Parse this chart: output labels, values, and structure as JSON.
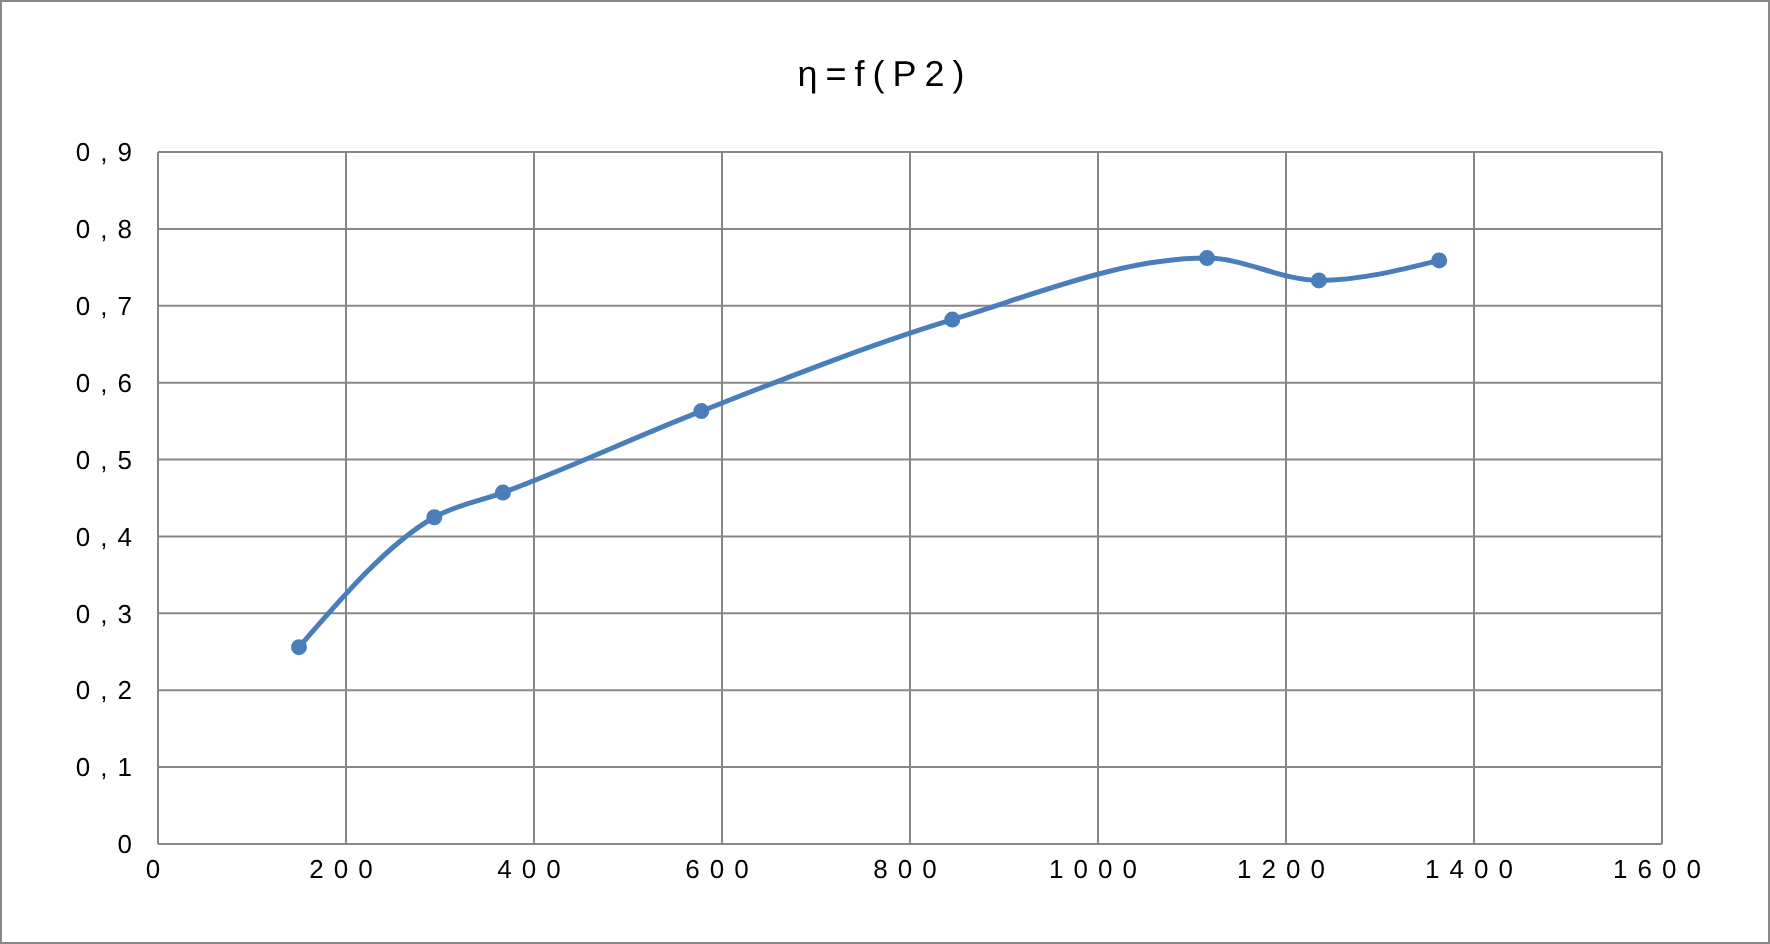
{
  "chart_data": {
    "type": "line",
    "title": "η=f(P2)",
    "x": [
      150,
      294,
      367,
      578,
      845,
      1116,
      1235,
      1363
    ],
    "series": [
      {
        "color": "#4a7ebb",
        "values": [
          0.256,
          0.425,
          0.457,
          0.563,
          0.682,
          0.762,
          0.733,
          0.759
        ]
      }
    ],
    "xlim": [
      0,
      1600
    ],
    "xticks": [
      0,
      200,
      400,
      600,
      800,
      1000,
      1200,
      1400,
      1600
    ],
    "ylim": [
      0,
      0.9
    ],
    "yticks": [
      0,
      {
        "value": 0.1,
        "label": "0,1"
      },
      {
        "value": 0.2,
        "label": "0,2"
      },
      {
        "value": 0.3,
        "label": "0,3"
      },
      {
        "value": 0.4,
        "label": "0,4"
      },
      {
        "value": 0.5,
        "label": "0,5"
      },
      {
        "value": 0.6,
        "label": "0,6"
      },
      {
        "value": 0.7,
        "label": "0,7"
      },
      {
        "value": 0.8,
        "label": "0,8"
      },
      {
        "value": 0.9,
        "label": "0,9"
      }
    ],
    "grid": true,
    "marker": "circle",
    "line_style": "solid",
    "legend": false
  }
}
